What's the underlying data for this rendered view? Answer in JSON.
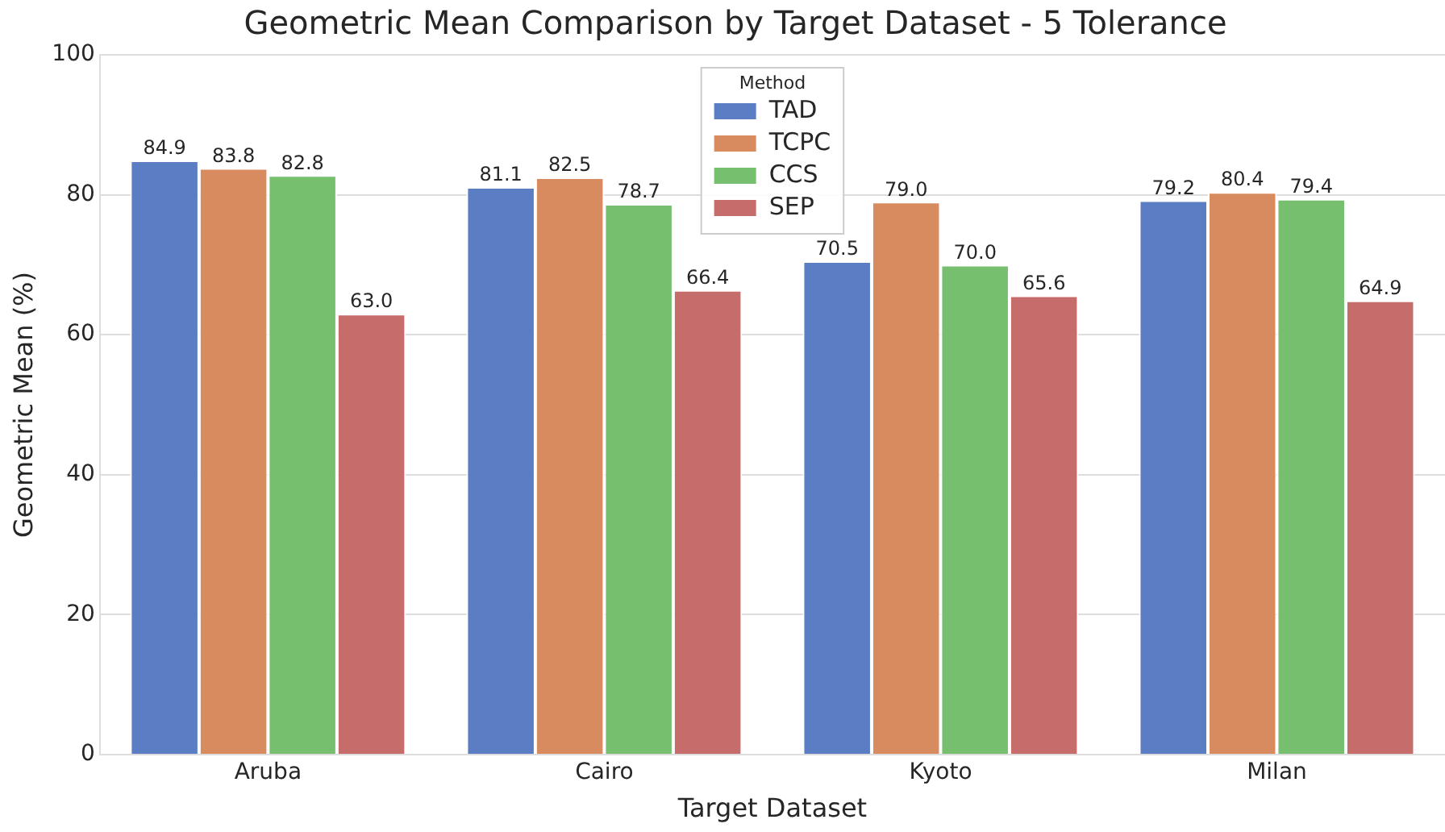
{
  "chart_data": {
    "type": "bar",
    "title": "Geometric Mean Comparison by Target Dataset - 5 Tolerance",
    "xlabel": "Target Dataset",
    "ylabel": "Geometric Mean (%)",
    "legend_title": "Method",
    "categories": [
      "Aruba",
      "Cairo",
      "Kyoto",
      "Milan"
    ],
    "series": [
      {
        "name": "TAD",
        "color": "#5b7dc3",
        "values": [
          84.9,
          81.1,
          70.5,
          79.2
        ],
        "value_labels": [
          "84.9",
          "81.1",
          "70.5",
          "79.2"
        ]
      },
      {
        "name": "TCPC",
        "color": "#d88b5f",
        "values": [
          83.8,
          82.5,
          79.0,
          80.4
        ],
        "value_labels": [
          "83.8",
          "82.5",
          "79.0",
          "80.4"
        ]
      },
      {
        "name": "CCS",
        "color": "#75bf6f",
        "values": [
          82.8,
          78.7,
          70.0,
          79.4
        ],
        "value_labels": [
          "82.8",
          "78.7",
          "70.0",
          "79.4"
        ]
      },
      {
        "name": "SEP",
        "color": "#c66c6b",
        "values": [
          63.0,
          66.4,
          65.6,
          64.9
        ],
        "value_labels": [
          "63.0",
          "66.4",
          "65.6",
          "64.9"
        ]
      }
    ],
    "ylim": [
      0,
      100
    ],
    "yticks": [
      0,
      20,
      40,
      60,
      80,
      100
    ],
    "grid": "y",
    "legend": "top"
  }
}
